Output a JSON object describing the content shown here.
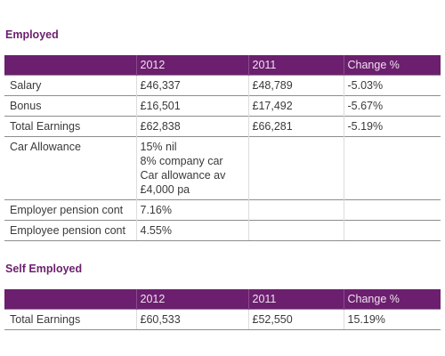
{
  "employed": {
    "title": "Employed",
    "headers": [
      "",
      "2012",
      "2011",
      "Change %"
    ],
    "rows": [
      {
        "label": "Salary",
        "y2012": "£46,337",
        "y2011": "£48,789",
        "change": "-5.03%"
      },
      {
        "label": "Bonus",
        "y2012": "£16,501",
        "y2011": "£17,492",
        "change": "-5.67%"
      },
      {
        "label": "Total Earnings",
        "y2012": "£62,838",
        "y2011": "£66,281",
        "change": "-5.19%"
      },
      {
        "label": "Car Allowance",
        "y2012_lines": [
          "15% nil",
          "8% company car",
          "Car allowance av",
          "£4,000 pa"
        ],
        "y2011": "",
        "change": ""
      },
      {
        "label": "Employer pension cont",
        "y2012": "7.16%",
        "y2011": "",
        "change": ""
      },
      {
        "label": "Employee pension cont",
        "y2012": "4.55%",
        "y2011": "",
        "change": ""
      }
    ]
  },
  "self_employed": {
    "title": "Self Employed",
    "headers": [
      "",
      "2012",
      "2011",
      "Change %"
    ],
    "rows": [
      {
        "label": "Total Earnings",
        "y2012": "£60,533",
        "y2011": "£52,550",
        "change": "15.19%"
      }
    ]
  },
  "colors": {
    "header_bg": "#6c1f6e",
    "title_text": "#6b1f6e"
  }
}
